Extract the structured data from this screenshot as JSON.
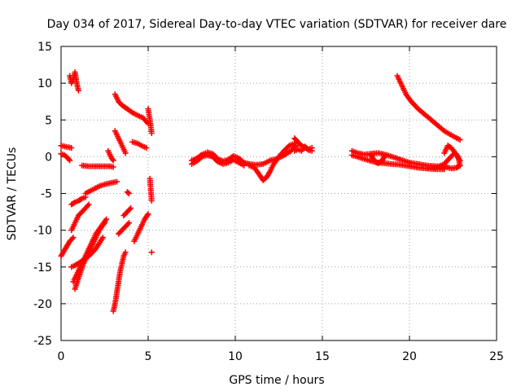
{
  "chart_data": {
    "type": "scatter",
    "title": "Day 034 of 2017, Sidereal Day-to-day VTEC variation (SDTVAR) for receiver dare",
    "xlabel": "GPS time / hours",
    "ylabel": "SDTVAR / TECUs",
    "xlim": [
      0,
      25
    ],
    "ylim": [
      -25,
      15
    ],
    "x_ticks": [
      0,
      5,
      10,
      15,
      20,
      25
    ],
    "y_ticks": [
      -25,
      -20,
      -15,
      -10,
      -5,
      0,
      5,
      10,
      15
    ],
    "x_tick_labels": [
      "0",
      "5",
      "10",
      "15",
      "20",
      "25"
    ],
    "y_tick_labels": [
      "-25",
      "-20",
      "-15",
      "-10",
      "-5",
      "0",
      "5",
      "10",
      "15"
    ],
    "grid": true,
    "grid_style": "dotted",
    "marker": "plus",
    "color": "#ff0000",
    "series": [
      {
        "x": [
          0.0,
          0.2,
          0.4,
          0.6
        ],
        "y": [
          1.5,
          1.4,
          1.3,
          1.2
        ]
      },
      {
        "x": [
          0.0,
          0.2,
          0.4,
          0.5
        ],
        "y": [
          0.4,
          0.2,
          -0.2,
          -0.5
        ]
      },
      {
        "x": [
          0.0,
          0.25,
          0.5,
          0.7
        ],
        "y": [
          -13.5,
          -12.5,
          -11.5,
          -11.0
        ]
      },
      {
        "x": [
          0.5,
          0.6,
          0.7,
          0.8,
          0.9,
          1.0
        ],
        "y": [
          11.0,
          10.0,
          10.5,
          11.5,
          10.0,
          9.0
        ]
      },
      {
        "x": [
          0.6,
          0.8,
          1.0,
          1.2,
          1.4
        ],
        "y": [
          -6.5,
          -6.2,
          -6.0,
          -5.7,
          -5.5
        ]
      },
      {
        "x": [
          0.6,
          0.8,
          1.0,
          1.2,
          1.4,
          1.6
        ],
        "y": [
          -10.0,
          -9.0,
          -8.0,
          -7.5,
          -7.0,
          -6.5
        ]
      },
      {
        "x": [
          0.6,
          0.8,
          1.0,
          1.3,
          1.6,
          2.0,
          2.4
        ],
        "y": [
          -15.0,
          -14.8,
          -14.5,
          -14.0,
          -13.5,
          -12.5,
          -11.0
        ]
      },
      {
        "x": [
          0.7,
          0.9,
          1.1,
          1.4,
          1.7,
          2.0,
          2.3,
          2.6
        ],
        "y": [
          -17.0,
          -16.0,
          -15.0,
          -13.5,
          -12.0,
          -10.5,
          -9.5,
          -8.5
        ]
      },
      {
        "x": [
          0.8,
          1.0,
          1.3,
          1.6,
          1.9,
          2.2,
          2.5
        ],
        "y": [
          -18.0,
          -16.5,
          -14.5,
          -13.0,
          -11.5,
          -10.0,
          -9.0
        ]
      },
      {
        "x": [
          1.2,
          1.6,
          2.0,
          2.4,
          2.8,
          3.0
        ],
        "y": [
          -1.2,
          -1.3,
          -1.3,
          -1.3,
          -1.3,
          -1.4
        ]
      },
      {
        "x": [
          1.4,
          1.8,
          2.2,
          2.6,
          3.0,
          3.2
        ],
        "y": [
          -5.0,
          -4.5,
          -4.0,
          -3.7,
          -3.5,
          -3.4
        ]
      },
      {
        "x": [
          2.7,
          2.8,
          2.9,
          3.0
        ],
        "y": [
          0.8,
          0.3,
          -0.2,
          -0.5
        ]
      },
      {
        "x": [
          3.0,
          3.1,
          3.2,
          3.3,
          3.4,
          3.5,
          3.6,
          3.7
        ],
        "y": [
          -21.0,
          -20.0,
          -18.5,
          -17.0,
          -15.5,
          -14.5,
          -13.5,
          -13.0
        ]
      },
      {
        "x": [
          3.1,
          3.3,
          3.5,
          3.7
        ],
        "y": [
          3.5,
          2.5,
          1.5,
          0.5
        ]
      },
      {
        "x": [
          3.1,
          3.3,
          3.5,
          3.8,
          4.1,
          4.4,
          4.7,
          5.0
        ],
        "y": [
          8.5,
          7.5,
          7.0,
          6.5,
          6.0,
          5.6,
          5.3,
          4.5
        ]
      },
      {
        "x": [
          3.3,
          3.5,
          3.7,
          3.9
        ],
        "y": [
          -10.5,
          -10.0,
          -9.5,
          -9.0
        ]
      },
      {
        "x": [
          3.6,
          3.8,
          4.0
        ],
        "y": [
          -8.0,
          -7.5,
          -7.0
        ]
      },
      {
        "x": [
          3.8,
          3.9
        ],
        "y": [
          -4.8,
          -5.0
        ]
      },
      {
        "x": [
          4.1,
          4.4,
          4.7,
          4.9
        ],
        "y": [
          2.0,
          1.8,
          1.4,
          1.2
        ]
      },
      {
        "x": [
          4.2,
          4.4,
          4.6,
          4.8,
          5.0
        ],
        "y": [
          -11.5,
          -10.5,
          -9.5,
          -8.5,
          -7.8
        ]
      },
      {
        "x": [
          5.0,
          5.1,
          5.2
        ],
        "y": [
          6.5,
          5.0,
          3.2
        ]
      },
      {
        "x": [
          5.1,
          5.2
        ],
        "y": [
          -3.0,
          -6.0
        ]
      },
      {
        "x": [
          5.2
        ],
        "y": [
          -13.0
        ]
      },
      {
        "x": [
          7.5,
          7.8,
          8.1,
          8.4,
          8.7,
          9.0,
          9.3,
          9.6,
          9.9,
          10.2,
          10.5,
          10.8
        ],
        "y": [
          -0.5,
          -0.2,
          0.3,
          0.6,
          0.4,
          -0.3,
          -0.6,
          -0.4,
          0.1,
          -0.2,
          -0.8,
          -1.0
        ]
      },
      {
        "x": [
          7.5,
          7.8,
          8.1,
          8.4,
          8.7,
          9.0,
          9.3,
          9.6,
          9.9,
          10.2,
          10.5
        ],
        "y": [
          -1.0,
          -0.6,
          0.0,
          0.2,
          0.0,
          -0.7,
          -1.0,
          -0.8,
          -0.4,
          -0.8,
          -1.2
        ]
      },
      {
        "x": [
          10.8,
          11.1,
          11.4,
          11.6,
          11.8,
          12.0,
          12.2,
          12.5,
          12.8,
          13.1,
          13.4
        ],
        "y": [
          -1.2,
          -1.5,
          -2.5,
          -3.2,
          -2.8,
          -2.0,
          -1.0,
          0.0,
          0.8,
          1.5,
          1.8
        ]
      },
      {
        "x": [
          10.8,
          11.2,
          11.6,
          12.0,
          12.4,
          12.8,
          13.2,
          13.5
        ],
        "y": [
          -1.0,
          -1.1,
          -1.0,
          -0.5,
          -0.3,
          0.2,
          0.8,
          1.5
        ]
      },
      {
        "x": [
          13.4,
          13.6,
          13.8,
          14.0,
          14.2,
          14.4
        ],
        "y": [
          2.5,
          2.0,
          1.5,
          1.2,
          1.0,
          1.2
        ]
      },
      {
        "x": [
          13.4,
          13.6,
          13.8,
          14.0,
          14.2,
          14.4
        ],
        "y": [
          0.8,
          1.0,
          0.8,
          1.4,
          0.9,
          0.8
        ]
      },
      {
        "x": [
          16.7,
          17.0,
          17.4,
          17.8,
          18.2,
          18.6,
          19.0,
          19.5,
          20.0,
          20.5,
          21.0,
          21.5,
          22.0
        ],
        "y": [
          0.8,
          0.5,
          0.3,
          0.4,
          0.5,
          0.3,
          0.0,
          -0.4,
          -0.8,
          -1.0,
          -1.2,
          -1.3,
          -1.3
        ]
      },
      {
        "x": [
          16.7,
          17.0,
          17.4,
          17.8,
          18.2,
          18.6,
          19.0,
          19.5,
          20.0,
          20.5,
          21.0,
          21.5,
          22.0
        ],
        "y": [
          0.2,
          0.0,
          -0.3,
          -0.6,
          -0.8,
          -0.9,
          -1.0,
          -1.1,
          -1.3,
          -1.5,
          -1.6,
          -1.7,
          -1.7
        ]
      },
      {
        "x": [
          17.8,
          18.0,
          18.2,
          18.4,
          18.6
        ],
        "y": [
          0.2,
          -0.6,
          -0.9,
          -0.6,
          0.1
        ]
      },
      {
        "x": [
          19.3,
          19.5,
          19.8,
          20.1,
          20.5,
          21.0,
          21.5,
          22.0,
          22.5,
          22.9
        ],
        "y": [
          11.0,
          10.0,
          8.5,
          7.5,
          6.5,
          5.5,
          4.5,
          3.5,
          2.8,
          2.3
        ]
      },
      {
        "x": [
          21.0,
          21.5,
          22.0,
          22.3,
          22.6,
          22.9
        ],
        "y": [
          -1.6,
          -1.5,
          -1.0,
          -0.2,
          0.5,
          -0.5
        ]
      },
      {
        "x": [
          22.0,
          22.2,
          22.4,
          22.6,
          22.8,
          22.9
        ],
        "y": [
          0.5,
          1.5,
          1.2,
          0.6,
          0.0,
          -1.2
        ]
      },
      {
        "x": [
          21.8,
          22.1,
          22.4,
          22.7,
          22.9
        ],
        "y": [
          -1.5,
          -1.4,
          -1.6,
          -1.5,
          -1.2
        ]
      }
    ]
  }
}
